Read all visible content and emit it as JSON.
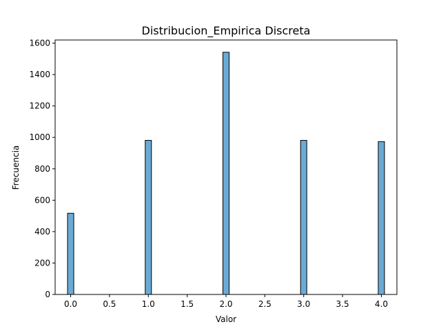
{
  "chart_data": {
    "type": "bar",
    "title": "Distribucion_Empirica Discreta",
    "xlabel": "Valor",
    "ylabel": "Frecuencia",
    "x": [
      0,
      1,
      2,
      3,
      4
    ],
    "values": [
      517,
      981,
      1542,
      981,
      973
    ],
    "bin_width": 0.08,
    "xlim": [
      -0.2,
      4.2
    ],
    "ylim": [
      0,
      1620
    ],
    "xticks": [
      0,
      0.5,
      1,
      1.5,
      2,
      2.5,
      3,
      3.5,
      4
    ],
    "xtick_labels": [
      "0.0",
      "0.5",
      "1.0",
      "1.5",
      "2.0",
      "2.5",
      "3.0",
      "3.5",
      "4.0"
    ],
    "yticks": [
      0,
      200,
      400,
      600,
      800,
      1000,
      1200,
      1400,
      1600
    ],
    "ytick_labels": [
      "0",
      "200",
      "400",
      "600",
      "800",
      "1000",
      "1200",
      "1400",
      "1600"
    ],
    "bar_color": "#6aaad6",
    "edge_color": "#000000",
    "grid": false
  }
}
